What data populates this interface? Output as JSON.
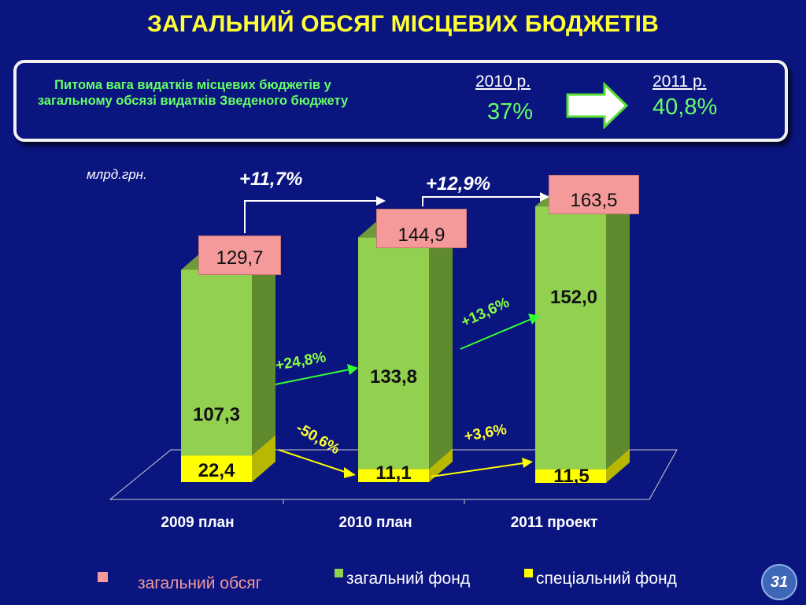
{
  "title": "ЗАГАЛЬНИЙ ОБСЯГ МІСЦЕВИХ БЮДЖЕТІВ",
  "info": {
    "text": "Питома вага видатків місцевих бюджетів у загальному обсязі видатків Зведеного бюджету",
    "from": {
      "year": "2010 р.",
      "value": "37%"
    },
    "to": {
      "year": "2011 р.",
      "value": "40,8%"
    }
  },
  "colors": {
    "background": "#0a1580",
    "general_fund": "#92d050",
    "special_fund": "#ffff00",
    "total": "#f49a9a",
    "title": "#ffff33"
  },
  "chart_data": {
    "type": "bar",
    "stacked": true,
    "unit": "млрд.грн.",
    "categories": [
      "2009 план",
      "2010  план",
      "2011 проект"
    ],
    "series": [
      {
        "name": "загальний фонд",
        "values": [
          107.3,
          133.8,
          152.0
        ],
        "labels": [
          "107,3",
          "133,8",
          "152,0"
        ],
        "color": "#92d050"
      },
      {
        "name": "спеціальний фонд",
        "values": [
          22.4,
          11.1,
          11.5
        ],
        "labels": [
          "22,4",
          "11,1",
          "11,5"
        ],
        "color": "#ffff00"
      }
    ],
    "totals": {
      "name": "загальний обсяг",
      "values": [
        129.7,
        144.9,
        163.5
      ],
      "labels": [
        "129,7",
        "144,9",
        "163,5"
      ],
      "color": "#f49a9a"
    },
    "growth_total": [
      "+11,7%",
      "+12,9%"
    ],
    "growth_general": [
      "+24,8%",
      "+13,6%"
    ],
    "growth_special": [
      "-50,6%",
      "+3,6%"
    ]
  },
  "legend": [
    "загальний обсяг",
    "загальний фонд",
    "спеціальний фонд"
  ],
  "page_number": "31"
}
